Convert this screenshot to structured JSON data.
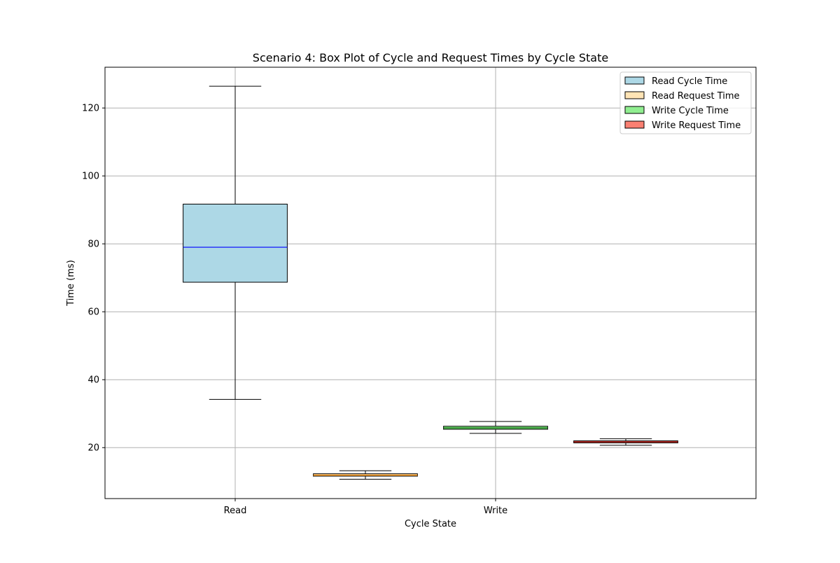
{
  "chart_data": {
    "type": "box",
    "title": "Scenario 4: Box Plot of Cycle and Request Times by Cycle State",
    "xlabel": "Cycle State",
    "ylabel": "Time (ms)",
    "categories": [
      "Read",
      "Write"
    ],
    "ylim": [
      5,
      132
    ],
    "yticks": [
      20,
      40,
      60,
      80,
      100,
      120
    ],
    "xlim": [
      0.5,
      3.0
    ],
    "grid": true,
    "legend_position": "top-right",
    "series": [
      {
        "name": "Read Cycle Time",
        "color": "#add8e6",
        "median_color": "#0000ff",
        "position": 1.0,
        "whisker_low": 34.2,
        "q1": 68.7,
        "median": 79.0,
        "q3": 91.7,
        "whisker_high": 126.4
      },
      {
        "name": "Read Request Time",
        "color": "#ffe4b5",
        "median_color": "#ff8c00",
        "position": 1.5,
        "whisker_low": 10.7,
        "q1": 11.6,
        "median": 11.9,
        "q3": 12.3,
        "whisker_high": 13.2
      },
      {
        "name": "Write Cycle Time",
        "color": "#90ee90",
        "median_color": "#006400",
        "position": 2.0,
        "whisker_low": 24.2,
        "q1": 25.4,
        "median": 25.8,
        "q3": 26.3,
        "whisker_high": 27.7
      },
      {
        "name": "Write Request Time",
        "color": "#fa8072",
        "median_color": "#8b0000",
        "position": 2.5,
        "whisker_low": 20.7,
        "q1": 21.4,
        "median": 21.7,
        "q3": 22.0,
        "whisker_high": 22.6
      }
    ]
  }
}
